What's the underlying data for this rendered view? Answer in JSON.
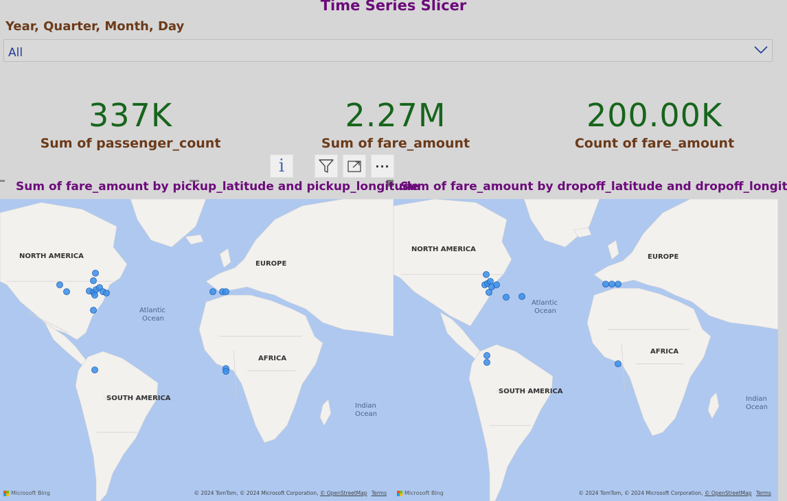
{
  "slicer": {
    "title": "Time Series Slicer",
    "label": "Year, Quarter, Month, Day",
    "value": "All"
  },
  "cards": [
    {
      "value": "337K",
      "label": "Sum of passenger_count"
    },
    {
      "value": "2.27M",
      "label": "Sum of fare_amount"
    },
    {
      "value": "200.00K",
      "label": "Count of fare_amount"
    }
  ],
  "toolbar": {
    "info_symbol": "i",
    "icons": [
      "info-icon",
      "filter-icon",
      "focus-mode-icon",
      "more-options-icon"
    ],
    "more_symbol": "···"
  },
  "maps": [
    {
      "title": "Sum of fare_amount by pickup_latitude and pickup_longitude",
      "labels": {
        "north_america": "NORTH AMERICA",
        "europe": "EUROPE",
        "atlantic": "Atlantic",
        "ocean": "Ocean",
        "africa": "AFRICA",
        "south_america": "SOUTH AMERICA",
        "indian": "Indian",
        "indian_ocean": "Ocean"
      },
      "bing": "Microsoft Bing",
      "attribution": "© 2024 TomTom, © 2024 Microsoft Corporation,",
      "osm": "© OpenStreetMap",
      "terms": "Terms"
    },
    {
      "title": "Sum of fare_amount by dropoff_latitude and dropoff_longitude",
      "labels": {
        "north_america": "NORTH AMERICA",
        "europe": "EUROPE",
        "atlantic": "Atlantic",
        "ocean": "Ocean",
        "africa": "AFRICA",
        "south_america": "SOUTH AMERICA",
        "indian": "Indian",
        "indian_ocean": "Ocean"
      },
      "bing": "Microsoft Bing",
      "attribution": "© 2024 TomTom, © 2024 Microsoft Corporation,",
      "osm": "© OpenStreetMap",
      "terms": "Terms"
    }
  ],
  "colors": {
    "ocean": "#aec8f0",
    "land": "#f2f1ee",
    "bubble": "#3b8fe8",
    "title": "#6b0a7a",
    "card_value": "#16651b",
    "card_label": "#6b3a1a"
  }
}
